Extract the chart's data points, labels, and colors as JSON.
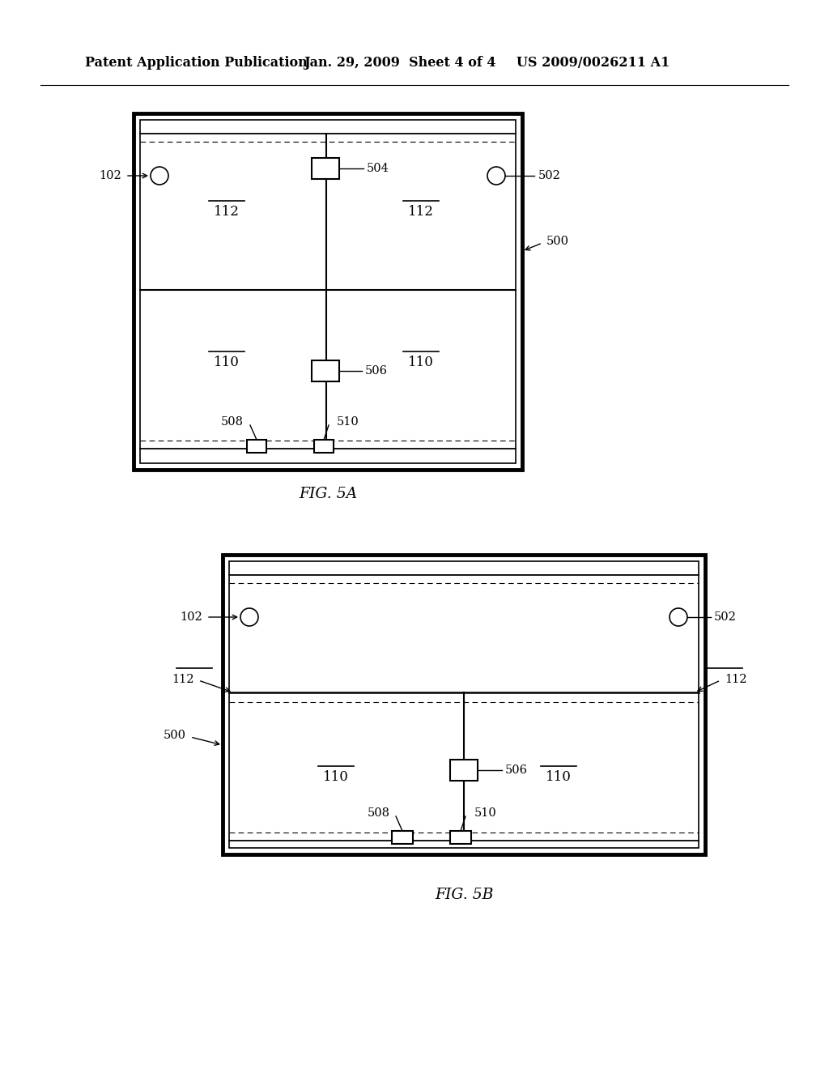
{
  "bg_color": "#ffffff",
  "header_text1": "Patent Application Publication",
  "header_text2": "Jan. 29, 2009  Sheet 4 of 4",
  "header_text3": "US 2009/0026211 A1",
  "fig5a_caption": "FIG. 5A",
  "fig5b_caption": "FIG. 5B",
  "line_color": "#000000"
}
